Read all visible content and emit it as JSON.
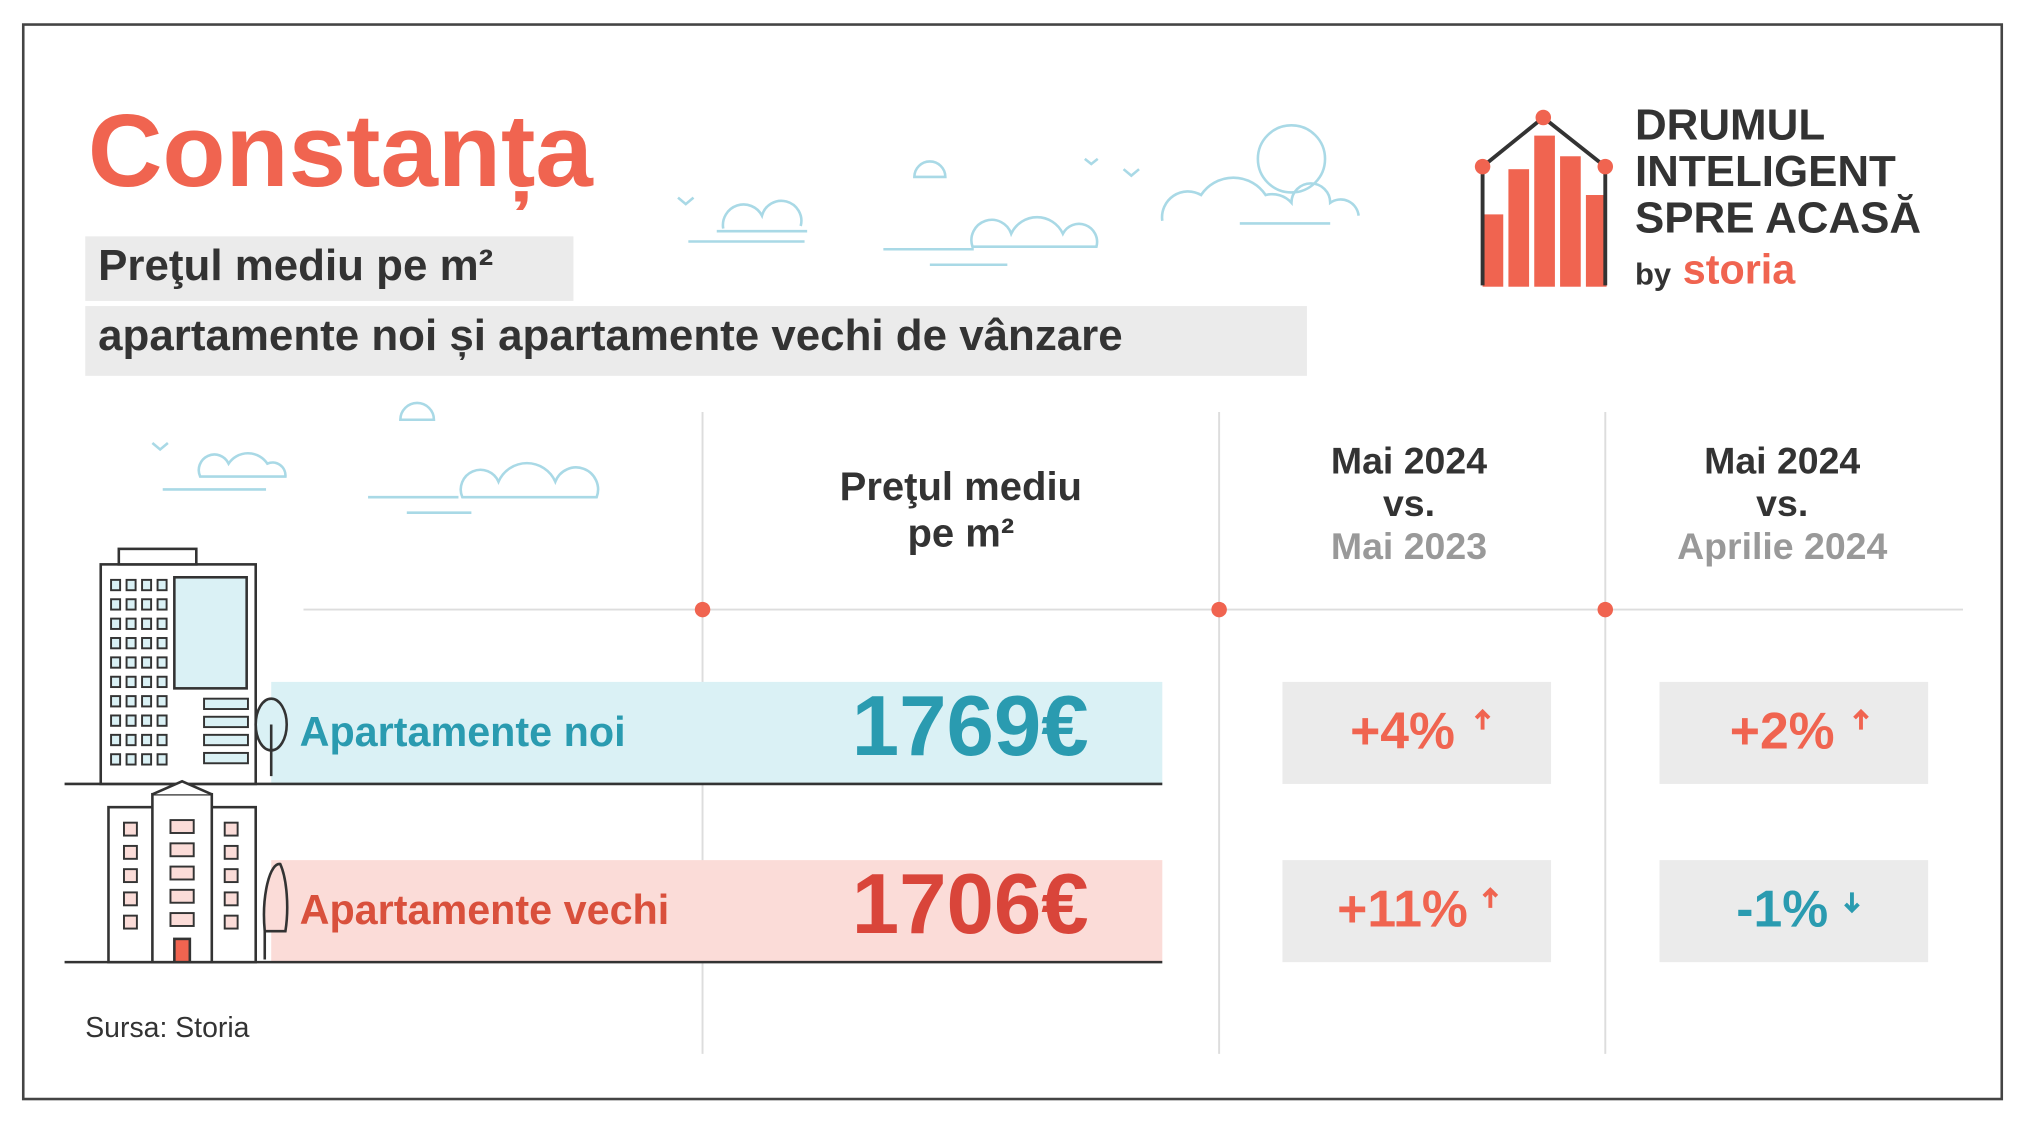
{
  "header": {
    "title": "Constanța",
    "subtitle_lines": [
      "Preţul mediu pe m²",
      "apartamente noi și apartamente vechi de vânzare"
    ]
  },
  "logo": {
    "lines": [
      "DRUMUL",
      "INTELIGENT",
      "SPRE ACASĂ"
    ],
    "by": "by",
    "brand": "storia"
  },
  "table": {
    "columns": [
      {
        "lines": [
          "Preţul mediu",
          "pe m²"
        ]
      },
      {
        "lines": [
          "Mai 2024",
          "vs.",
          "Mai 2023"
        ]
      },
      {
        "lines": [
          "Mai 2024",
          "vs.",
          "Aprilie 2024"
        ]
      }
    ],
    "rows": [
      [
        "Apartamente noi",
        "1769€",
        "+4%",
        "+2%"
      ],
      [
        "Apartamente vechi",
        "1706€",
        "+11%",
        "-1%"
      ]
    ]
  },
  "source": "Sursa: Storia"
}
